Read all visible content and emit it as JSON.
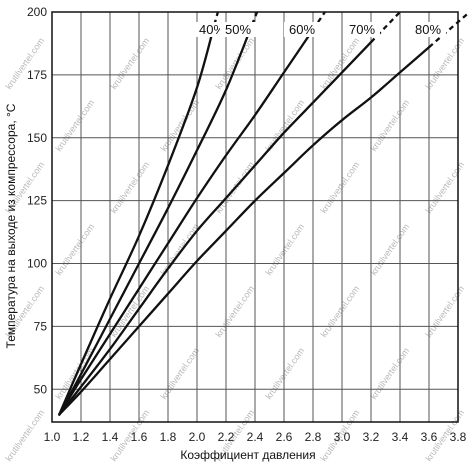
{
  "chart_data": {
    "type": "line",
    "title": "",
    "xlabel": "Коэффициент давления",
    "ylabel": "Температура на выходе из компрессора, °C",
    "xlim": [
      1.0,
      3.8
    ],
    "ylim": [
      37,
      200
    ],
    "xticks": [
      "1.0",
      "1.2",
      "1.4",
      "1.6",
      "1.8",
      "2.0",
      "2.2",
      "2.4",
      "2.6",
      "2.8",
      "3.0",
      "3.2",
      "3.4",
      "3.6",
      "3.8"
    ],
    "xtick_values": [
      1.0,
      1.2,
      1.4,
      1.6,
      1.8,
      2.0,
      2.2,
      2.4,
      2.6,
      2.8,
      3.0,
      3.2,
      3.4,
      3.6,
      3.8
    ],
    "yticks": [
      "50",
      "75",
      "100",
      "125",
      "150",
      "175",
      "200"
    ],
    "ytick_values": [
      50,
      75,
      100,
      125,
      150,
      175,
      200
    ],
    "grid": true,
    "series": [
      {
        "name": "40%",
        "x": [
          1.05,
          1.2,
          1.4,
          1.6,
          1.8,
          2.0,
          2.12
        ],
        "y": [
          40,
          60,
          86,
          111,
          139,
          170,
          195
        ]
      },
      {
        "name": "50%",
        "x": [
          1.05,
          1.2,
          1.4,
          1.6,
          1.8,
          2.0,
          2.2,
          2.38
        ],
        "y": [
          40,
          56,
          78,
          100,
          122,
          145,
          169,
          195
        ]
      },
      {
        "name": "60%",
        "x": [
          1.05,
          1.2,
          1.4,
          1.6,
          1.8,
          2.0,
          2.2,
          2.4,
          2.6,
          2.8
        ],
        "y": [
          40,
          54,
          72,
          90,
          108,
          126,
          143,
          159,
          176,
          193
        ]
      },
      {
        "name": "70%",
        "x": [
          1.05,
          1.2,
          1.4,
          1.6,
          1.8,
          2.0,
          2.2,
          2.4,
          2.6,
          2.8,
          3.0,
          3.2
        ],
        "y": [
          40,
          51,
          66,
          82,
          98,
          113,
          126,
          139,
          152,
          164,
          176,
          188
        ]
      },
      {
        "name": "80%",
        "x": [
          1.05,
          1.2,
          1.4,
          1.6,
          1.8,
          2.0,
          2.2,
          2.4,
          2.6,
          2.8,
          3.0,
          3.2,
          3.4,
          3.6
        ],
        "y": [
          40,
          49,
          62,
          75,
          88,
          101,
          113,
          125,
          136,
          147,
          157,
          166,
          176,
          186
        ]
      }
    ]
  },
  "watermark": "krutilvertel.com"
}
